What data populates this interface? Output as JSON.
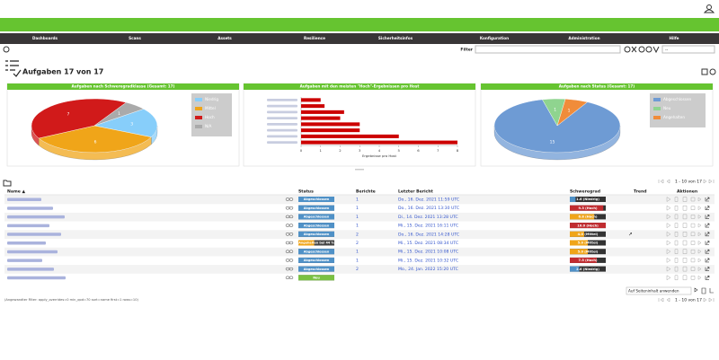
{
  "header": {
    "nav": [
      "Dashboards",
      "Scans",
      "Assets",
      "Resilience",
      "Sicherheitsinfos",
      "Konfiguration",
      "Administration",
      "Hilfe"
    ]
  },
  "toolbar": {
    "filter_label": "Filter",
    "filter_select": "--"
  },
  "title": "Aufgaben 17 von 17",
  "chart_data": [
    {
      "type": "pie",
      "title": "Aufgaben nach Schweregradklasse (Gesamt: 17)",
      "categories": [
        "Niedrig",
        "Mittel",
        "Hoch",
        "N/A"
      ],
      "values": [
        3,
        6,
        7,
        1
      ],
      "colors": [
        "#87cefa",
        "#f0a519",
        "#d11a1a",
        "#aaaaaa"
      ],
      "legend": "right"
    },
    {
      "type": "bar",
      "orientation": "horizontal",
      "title": "Aufgaben mit den meisten \"Hoch\"-Ergebnissen pro Host",
      "categories": [
        null,
        null,
        null,
        null,
        null,
        null,
        null,
        null
      ],
      "values": [
        1,
        1.2,
        2.2,
        2,
        3,
        3,
        5,
        8
      ],
      "color": "#cc0000",
      "xlim": [
        0,
        8
      ],
      "xticks": [
        0,
        1,
        2,
        3,
        4,
        5,
        6,
        7,
        8
      ],
      "xlabel": "Ergebnisse pro Host"
    },
    {
      "type": "pie",
      "title": "Aufgaben nach Status (Gesamt: 17)",
      "categories": [
        "Abgeschlossen",
        "Neu",
        "Angehalten"
      ],
      "values": [
        15,
        1,
        1
      ],
      "colors": [
        "#6e9bd4",
        "#8fd48f",
        "#f08c3a"
      ],
      "legend": "right"
    }
  ],
  "table": {
    "columns": [
      "Name ▲",
      "Status",
      "Berichte",
      "Letzter Bericht",
      "Schweregrad",
      "Trend",
      "Aktionen"
    ],
    "pagination_top": "1 - 10 von 17",
    "rows": [
      {
        "name": null,
        "status": "Abgeschlossen",
        "reports": 1,
        "last_report": "Do., 16. Dez. 2021 11:59 UTC",
        "severity": 1.6,
        "severity_label": "1.6 (Niedrig)",
        "trend": null
      },
      {
        "name": null,
        "status": "Abgeschlossen",
        "reports": 1,
        "last_report": "Do., 16. Dez. 2021 13:30 UTC",
        "severity": 9.3,
        "severity_label": "9.3 (Hoch)",
        "trend": null
      },
      {
        "name": null,
        "status": "Abgeschlossen",
        "reports": 1,
        "last_report": "Di., 14. Dez. 2021 13:28 UTC",
        "severity": 6.8,
        "severity_label": "6.8 (Hoch)",
        "trend": null
      },
      {
        "name": null,
        "status": "Abgeschlossen",
        "reports": 1,
        "last_report": "Mi., 15. Dez. 2021 16:11 UTC",
        "severity": 10,
        "severity_label": "10.0 (Hoch)",
        "trend": null
      },
      {
        "name": null,
        "status": "Abgeschlossen",
        "reports": 2,
        "last_report": "Do., 16. Dez. 2021 14:28 UTC",
        "severity": 4,
        "severity_label": "4.0 (Mittel)",
        "trend": "↗"
      },
      {
        "name": null,
        "status": "Angehalten bei 44 %",
        "progress": 44,
        "reports": 2,
        "last_report": "Mi., 15. Dez. 2021 08:34 UTC",
        "severity": 5,
        "severity_label": "5.0 (Mittel)",
        "trend": null
      },
      {
        "name": null,
        "status": "Abgeschlossen",
        "reports": 1,
        "last_report": "Mi., 15. Dez. 2021 10:08 UTC",
        "severity": 5,
        "severity_label": "5.0 (Mittel)",
        "trend": null
      },
      {
        "name": null,
        "status": "Abgeschlossen",
        "reports": 1,
        "last_report": "Mi., 15. Dez. 2021 10:32 UTC",
        "severity": 7.5,
        "severity_label": "7.5 (Hoch)",
        "trend": null
      },
      {
        "name": null,
        "status": "Abgeschlossen",
        "reports": 2,
        "last_report": "Mo., 24. Jan. 2022 15:20 UTC",
        "severity": 2.6,
        "severity_label": "2.6 (Niedrig)",
        "trend": null
      },
      {
        "name": null,
        "status": "Neu",
        "reports": null,
        "last_report": null,
        "severity": null,
        "severity_label": null,
        "trend": null
      }
    ],
    "bulk_action": "Auf Seiteninhalt anwenden",
    "applied_filter": "(Angewandter Filter: apply_overrides=0 min_qod=70 sort=name first=1 rows=10)",
    "pagination_bottom": "1 - 10 von 17"
  }
}
